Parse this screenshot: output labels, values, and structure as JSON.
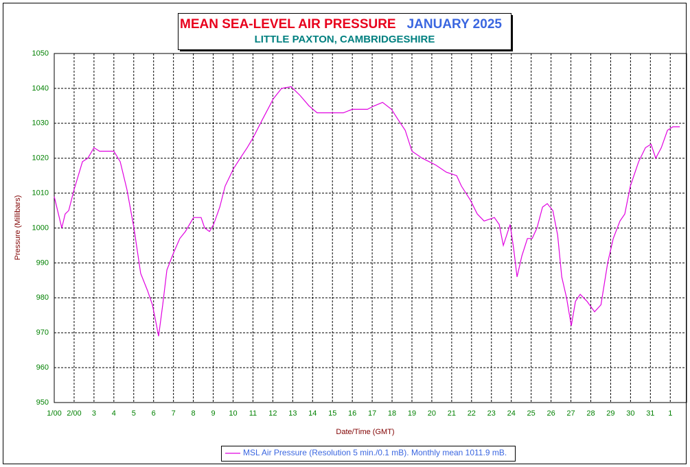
{
  "chart_data": {
    "type": "line",
    "title": "MEAN SEA-LEVEL AIR PRESSURE",
    "period": "JANUARY 2025",
    "subtitle": "LITTLE PAXTON, CAMBRIDGESHIRE",
    "x_label": "Date/Time (GMT)",
    "y_label": "Pressure (Millibars)",
    "xlim": [
      1,
      32.82
    ],
    "ylim": [
      950,
      1050
    ],
    "xticks": [
      {
        "value": 1,
        "label": "1/00"
      },
      {
        "value": 2,
        "label": "2/00"
      },
      3,
      4,
      5,
      6,
      7,
      8,
      9,
      10,
      11,
      12,
      13,
      14,
      15,
      16,
      17,
      18,
      19,
      20,
      21,
      22,
      23,
      24,
      25,
      26,
      27,
      28,
      29,
      30,
      31,
      {
        "value": 32,
        "label": "1"
      }
    ],
    "yticks": [
      950,
      960,
      970,
      980,
      990,
      1000,
      1010,
      1020,
      1030,
      1040,
      1050
    ],
    "grid": true,
    "legend": "bottom",
    "x": [
      1,
      1.38,
      1.55,
      1.73,
      2,
      2.42,
      2.69,
      3,
      3.28,
      3.63,
      4,
      4.32,
      4.66,
      5.01,
      5.35,
      5.7,
      5.94,
      6.15,
      6.25,
      6.46,
      6.67,
      7.01,
      7.32,
      7.6,
      8.01,
      8.39,
      8.57,
      8.81,
      9.02,
      9.33,
      9.6,
      10.02,
      10.36,
      10.71,
      11.02,
      11.47,
      12.02,
      12.44,
      12.92,
      13.37,
      13.82,
      14.23,
      15.03,
      15.55,
      16,
      16.76,
      17.1,
      17.52,
      17.97,
      18.31,
      18.66,
      19,
      19.52,
      19.87,
      20.21,
      20.73,
      21.25,
      21.49,
      21.94,
      22.29,
      22.63,
      23.15,
      23.39,
      23.6,
      23.94,
      24.12,
      24.29,
      24.53,
      24.81,
      25.05,
      25.29,
      25.57,
      25.81,
      26.09,
      26.33,
      26.54,
      26.78,
      27.02,
      27.23,
      27.47,
      27.81,
      28.19,
      28.51,
      28.85,
      29.13,
      29.47,
      29.71,
      29.99,
      30.41,
      30.75,
      31.03,
      31.27,
      31.55,
      31.86,
      32.13,
      32.48
    ],
    "series": [
      {
        "name": "MSL Air Pressure (Resolution 5 min./0.1 mB). Monthly mean 1011.9 mB.",
        "color": "#e000e0",
        "values": [
          1009,
          1000,
          1004,
          1005,
          1011,
          1019,
          1020,
          1023,
          1022,
          1022,
          1022,
          1019,
          1011,
          1000,
          987,
          982,
          978,
          972,
          969,
          978,
          988,
          993,
          997,
          999,
          1003,
          1003,
          1000,
          999,
          1001,
          1006,
          1012,
          1017,
          1020,
          1023,
          1026,
          1031,
          1037,
          1040,
          1040.5,
          1038,
          1035,
          1033,
          1033,
          1033,
          1034,
          1034,
          1035,
          1036,
          1034,
          1031,
          1028,
          1022,
          1020,
          1019,
          1018,
          1016,
          1015,
          1012,
          1008,
          1004,
          1002,
          1003,
          1001,
          995,
          1001,
          994,
          986,
          992,
          997,
          997,
          1000,
          1006,
          1007,
          1005,
          998,
          986,
          980,
          972,
          979,
          981,
          979,
          976,
          978,
          990,
          997,
          1002,
          1004,
          1012,
          1019,
          1023,
          1024,
          1020,
          1023,
          1028,
          1029,
          1029
        ]
      }
    ]
  }
}
